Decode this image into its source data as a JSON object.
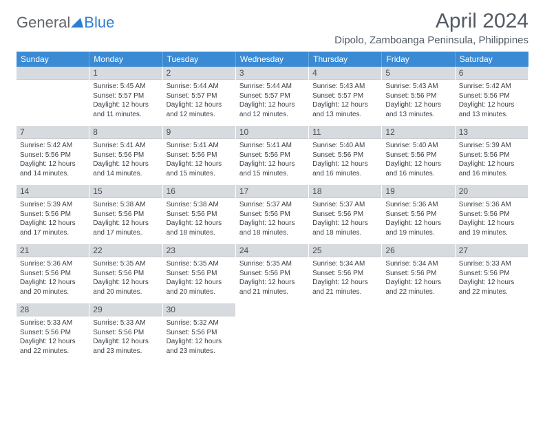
{
  "brand": {
    "part1": "General",
    "part2": "Blue"
  },
  "title": "April 2024",
  "location": "Dipolo, Zamboanga Peninsula, Philippines",
  "colors": {
    "header_bar": "#3b8bd4",
    "header_bar_border": "#66a6dd",
    "daynum_bg": "#d7dade",
    "text_dark": "#3a3f44",
    "title_color": "#525a63",
    "logo_gray": "#5f6368",
    "logo_blue": "#2d7dd2"
  },
  "typography": {
    "title_fontsize": 30,
    "location_fontsize": 15,
    "dow_fontsize": 12,
    "daynum_fontsize": 12,
    "body_fontsize": 10
  },
  "dow": [
    "Sunday",
    "Monday",
    "Tuesday",
    "Wednesday",
    "Thursday",
    "Friday",
    "Saturday"
  ],
  "weeks": [
    [
      null,
      {
        "n": "1",
        "sr": "Sunrise: 5:45 AM",
        "ss": "Sunset: 5:57 PM",
        "d1": "Daylight: 12 hours",
        "d2": "and 11 minutes."
      },
      {
        "n": "2",
        "sr": "Sunrise: 5:44 AM",
        "ss": "Sunset: 5:57 PM",
        "d1": "Daylight: 12 hours",
        "d2": "and 12 minutes."
      },
      {
        "n": "3",
        "sr": "Sunrise: 5:44 AM",
        "ss": "Sunset: 5:57 PM",
        "d1": "Daylight: 12 hours",
        "d2": "and 12 minutes."
      },
      {
        "n": "4",
        "sr": "Sunrise: 5:43 AM",
        "ss": "Sunset: 5:57 PM",
        "d1": "Daylight: 12 hours",
        "d2": "and 13 minutes."
      },
      {
        "n": "5",
        "sr": "Sunrise: 5:43 AM",
        "ss": "Sunset: 5:56 PM",
        "d1": "Daylight: 12 hours",
        "d2": "and 13 minutes."
      },
      {
        "n": "6",
        "sr": "Sunrise: 5:42 AM",
        "ss": "Sunset: 5:56 PM",
        "d1": "Daylight: 12 hours",
        "d2": "and 13 minutes."
      }
    ],
    [
      {
        "n": "7",
        "sr": "Sunrise: 5:42 AM",
        "ss": "Sunset: 5:56 PM",
        "d1": "Daylight: 12 hours",
        "d2": "and 14 minutes."
      },
      {
        "n": "8",
        "sr": "Sunrise: 5:41 AM",
        "ss": "Sunset: 5:56 PM",
        "d1": "Daylight: 12 hours",
        "d2": "and 14 minutes."
      },
      {
        "n": "9",
        "sr": "Sunrise: 5:41 AM",
        "ss": "Sunset: 5:56 PM",
        "d1": "Daylight: 12 hours",
        "d2": "and 15 minutes."
      },
      {
        "n": "10",
        "sr": "Sunrise: 5:41 AM",
        "ss": "Sunset: 5:56 PM",
        "d1": "Daylight: 12 hours",
        "d2": "and 15 minutes."
      },
      {
        "n": "11",
        "sr": "Sunrise: 5:40 AM",
        "ss": "Sunset: 5:56 PM",
        "d1": "Daylight: 12 hours",
        "d2": "and 16 minutes."
      },
      {
        "n": "12",
        "sr": "Sunrise: 5:40 AM",
        "ss": "Sunset: 5:56 PM",
        "d1": "Daylight: 12 hours",
        "d2": "and 16 minutes."
      },
      {
        "n": "13",
        "sr": "Sunrise: 5:39 AM",
        "ss": "Sunset: 5:56 PM",
        "d1": "Daylight: 12 hours",
        "d2": "and 16 minutes."
      }
    ],
    [
      {
        "n": "14",
        "sr": "Sunrise: 5:39 AM",
        "ss": "Sunset: 5:56 PM",
        "d1": "Daylight: 12 hours",
        "d2": "and 17 minutes."
      },
      {
        "n": "15",
        "sr": "Sunrise: 5:38 AM",
        "ss": "Sunset: 5:56 PM",
        "d1": "Daylight: 12 hours",
        "d2": "and 17 minutes."
      },
      {
        "n": "16",
        "sr": "Sunrise: 5:38 AM",
        "ss": "Sunset: 5:56 PM",
        "d1": "Daylight: 12 hours",
        "d2": "and 18 minutes."
      },
      {
        "n": "17",
        "sr": "Sunrise: 5:37 AM",
        "ss": "Sunset: 5:56 PM",
        "d1": "Daylight: 12 hours",
        "d2": "and 18 minutes."
      },
      {
        "n": "18",
        "sr": "Sunrise: 5:37 AM",
        "ss": "Sunset: 5:56 PM",
        "d1": "Daylight: 12 hours",
        "d2": "and 18 minutes."
      },
      {
        "n": "19",
        "sr": "Sunrise: 5:36 AM",
        "ss": "Sunset: 5:56 PM",
        "d1": "Daylight: 12 hours",
        "d2": "and 19 minutes."
      },
      {
        "n": "20",
        "sr": "Sunrise: 5:36 AM",
        "ss": "Sunset: 5:56 PM",
        "d1": "Daylight: 12 hours",
        "d2": "and 19 minutes."
      }
    ],
    [
      {
        "n": "21",
        "sr": "Sunrise: 5:36 AM",
        "ss": "Sunset: 5:56 PM",
        "d1": "Daylight: 12 hours",
        "d2": "and 20 minutes."
      },
      {
        "n": "22",
        "sr": "Sunrise: 5:35 AM",
        "ss": "Sunset: 5:56 PM",
        "d1": "Daylight: 12 hours",
        "d2": "and 20 minutes."
      },
      {
        "n": "23",
        "sr": "Sunrise: 5:35 AM",
        "ss": "Sunset: 5:56 PM",
        "d1": "Daylight: 12 hours",
        "d2": "and 20 minutes."
      },
      {
        "n": "24",
        "sr": "Sunrise: 5:35 AM",
        "ss": "Sunset: 5:56 PM",
        "d1": "Daylight: 12 hours",
        "d2": "and 21 minutes."
      },
      {
        "n": "25",
        "sr": "Sunrise: 5:34 AM",
        "ss": "Sunset: 5:56 PM",
        "d1": "Daylight: 12 hours",
        "d2": "and 21 minutes."
      },
      {
        "n": "26",
        "sr": "Sunrise: 5:34 AM",
        "ss": "Sunset: 5:56 PM",
        "d1": "Daylight: 12 hours",
        "d2": "and 22 minutes."
      },
      {
        "n": "27",
        "sr": "Sunrise: 5:33 AM",
        "ss": "Sunset: 5:56 PM",
        "d1": "Daylight: 12 hours",
        "d2": "and 22 minutes."
      }
    ],
    [
      {
        "n": "28",
        "sr": "Sunrise: 5:33 AM",
        "ss": "Sunset: 5:56 PM",
        "d1": "Daylight: 12 hours",
        "d2": "and 22 minutes."
      },
      {
        "n": "29",
        "sr": "Sunrise: 5:33 AM",
        "ss": "Sunset: 5:56 PM",
        "d1": "Daylight: 12 hours",
        "d2": "and 23 minutes."
      },
      {
        "n": "30",
        "sr": "Sunrise: 5:32 AM",
        "ss": "Sunset: 5:56 PM",
        "d1": "Daylight: 12 hours",
        "d2": "and 23 minutes."
      },
      null,
      null,
      null,
      null
    ]
  ]
}
